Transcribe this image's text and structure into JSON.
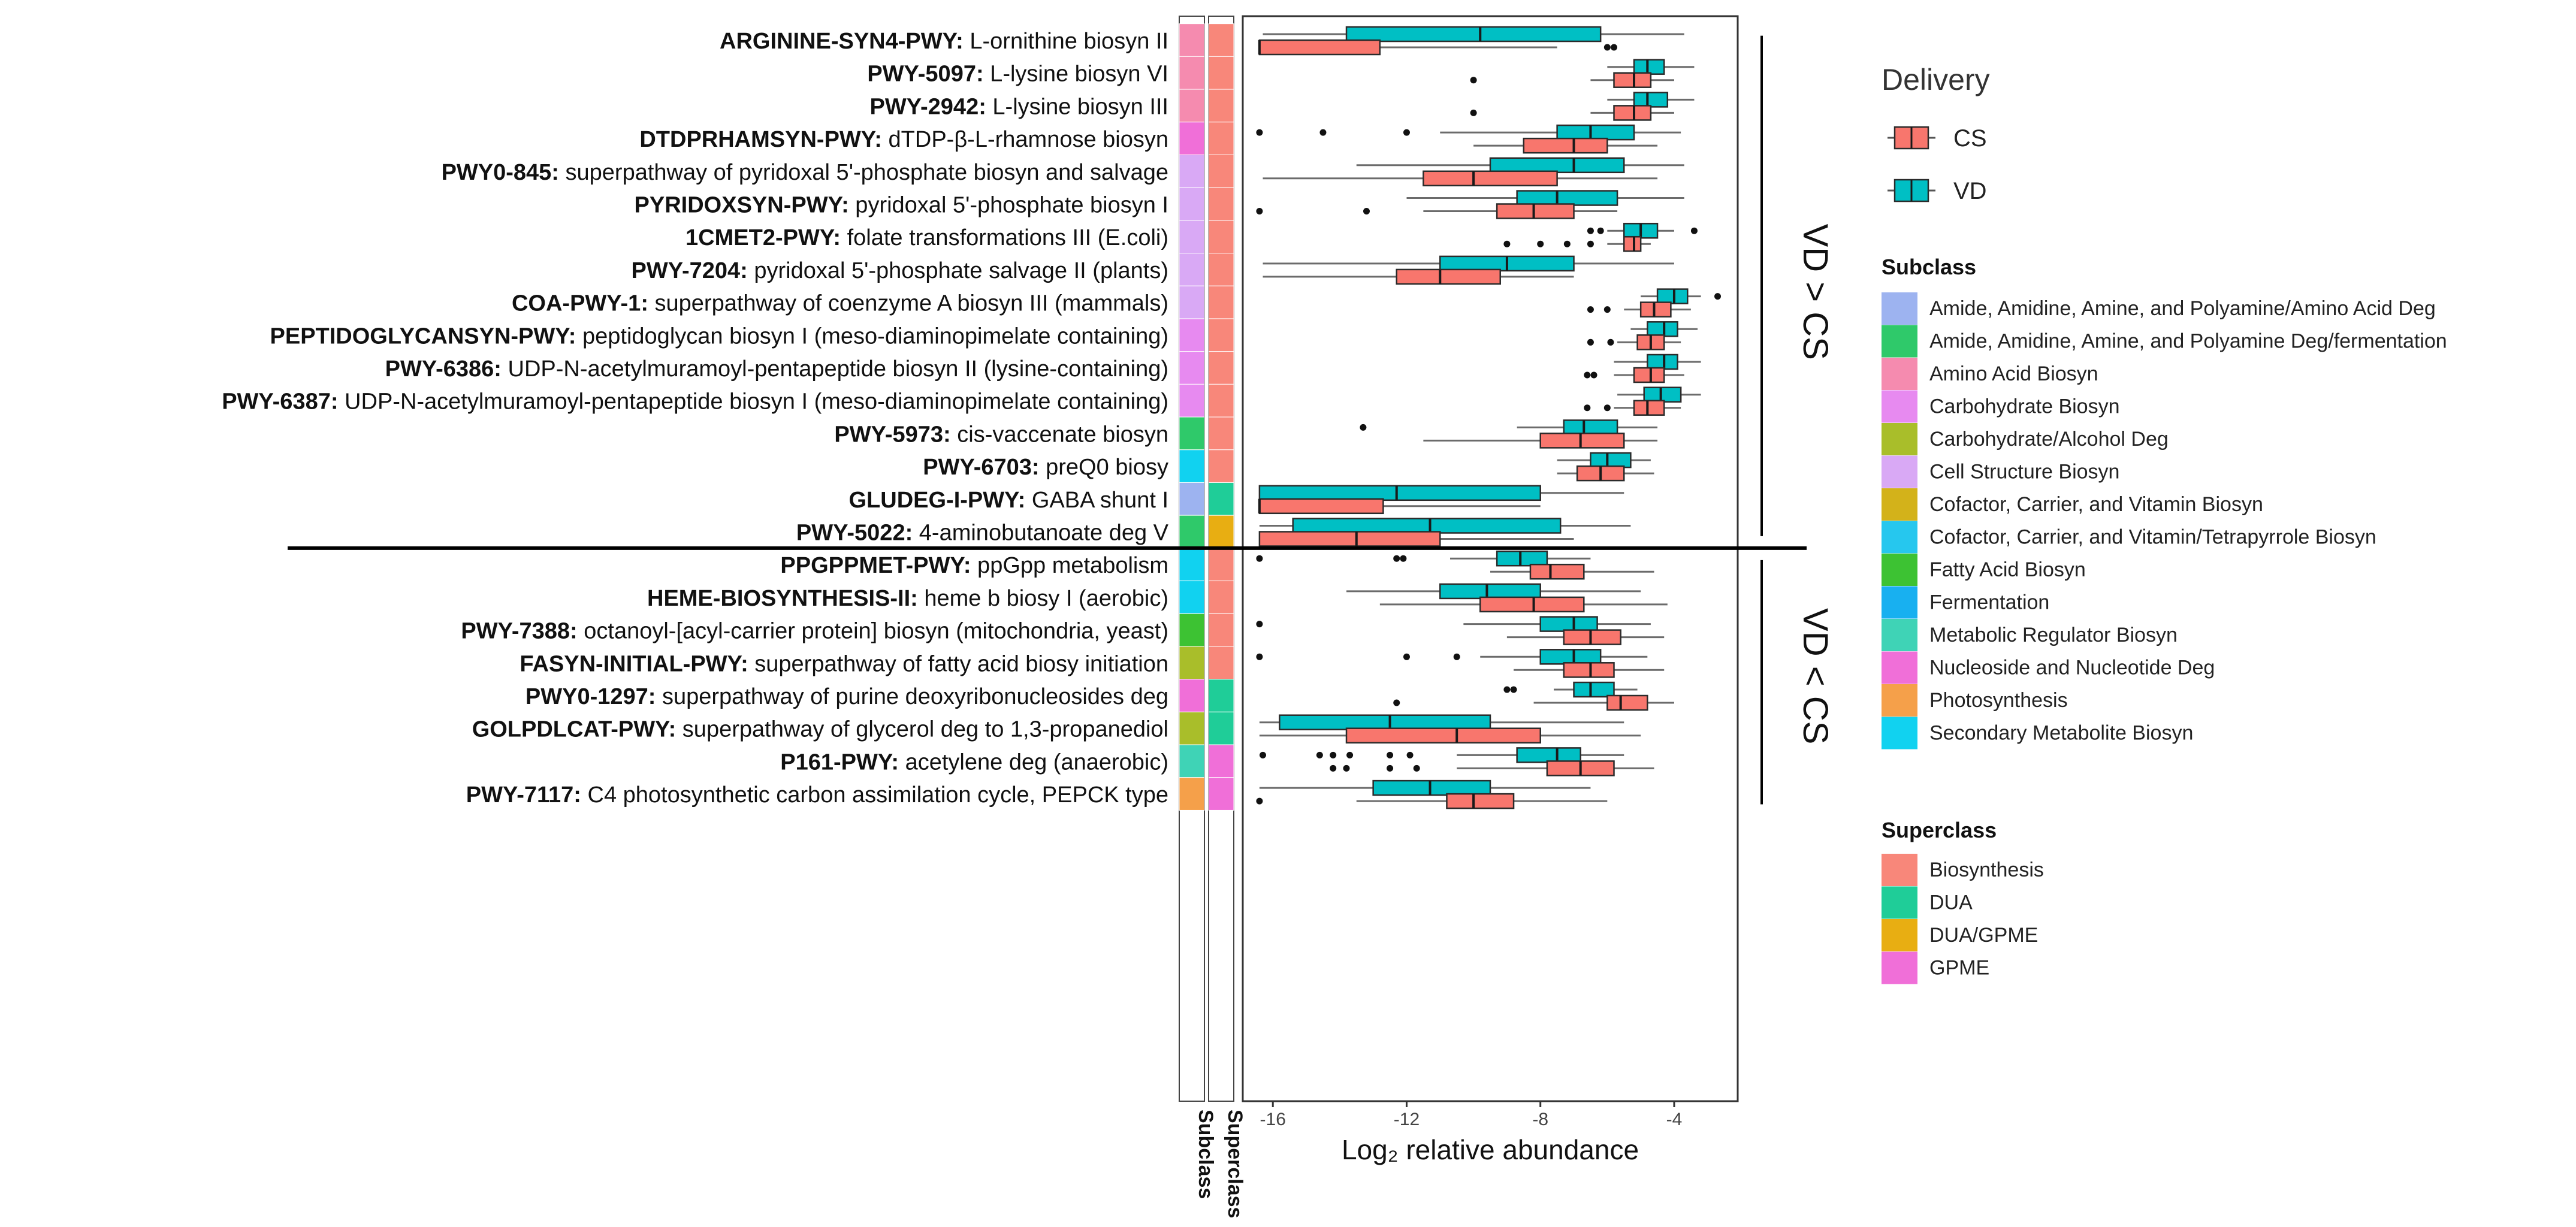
{
  "chart_data": {
    "type": "box",
    "xlabel": "Log₂ relative abundance",
    "x_ticks": [
      -16,
      -12,
      -8,
      -4
    ],
    "xlim": [
      -16.9,
      -2.1
    ],
    "group_labels": {
      "upper": "VD > CS",
      "lower": "VD < CS"
    },
    "strip_labels": {
      "subclass": "Subclass",
      "superclass": "Superclass"
    },
    "pathways": [
      {
        "id": "ARGININE-SYN4-PWY:",
        "desc": "L-ornithine biosyn II",
        "subclass": "Amino Acid Biosyn",
        "superclass": "Biosynthesis",
        "group": "upper",
        "VD": {
          "whislo": -16.3,
          "q1": -13.8,
          "med": -9.8,
          "q3": -6.2,
          "whishi": -3.7,
          "out": []
        },
        "CS": {
          "whislo": -16.4,
          "q1": -16.4,
          "med": -16.4,
          "q3": -12.8,
          "whishi": -7.5,
          "out": [
            -6.0,
            -5.8
          ]
        }
      },
      {
        "id": "PWY-5097:",
        "desc": "L-lysine biosyn VI",
        "subclass": "Amino Acid Biosyn",
        "superclass": "Biosynthesis",
        "group": "upper",
        "VD": {
          "whislo": -6.0,
          "q1": -5.2,
          "med": -4.8,
          "q3": -4.3,
          "whishi": -3.4,
          "out": []
        },
        "CS": {
          "whislo": -6.5,
          "q1": -5.8,
          "med": -5.2,
          "q3": -4.7,
          "whishi": -4.0,
          "out": [
            -10.0
          ]
        }
      },
      {
        "id": "PWY-2942:",
        "desc": "L-lysine biosyn III",
        "subclass": "Amino Acid Biosyn",
        "superclass": "Biosynthesis",
        "group": "upper",
        "VD": {
          "whislo": -6.0,
          "q1": -5.2,
          "med": -4.8,
          "q3": -4.2,
          "whishi": -3.4,
          "out": []
        },
        "CS": {
          "whislo": -6.5,
          "q1": -5.8,
          "med": -5.2,
          "q3": -4.7,
          "whishi": -4.0,
          "out": [
            -10.0
          ]
        }
      },
      {
        "id": "DTDPRHAMSYN-PWY:",
        "desc": "dTDP-β-L-rhamnose biosyn",
        "subclass": "Nucleoside and Nucleotide Deg",
        "superclass": "Biosynthesis",
        "group": "upper",
        "VD": {
          "whislo": -11.0,
          "q1": -7.5,
          "med": -6.5,
          "q3": -5.2,
          "whishi": -3.8,
          "out": [
            -16.4,
            -14.5,
            -12.0
          ]
        },
        "CS": {
          "whislo": -10.0,
          "q1": -8.5,
          "med": -7.0,
          "q3": -6.0,
          "whishi": -4.5,
          "out": []
        }
      },
      {
        "id": "PWY0-845:",
        "desc": "superpathway of pyridoxal 5'-phosphate biosyn and salvage",
        "subclass": "Cell Structure Biosyn",
        "superclass": "Biosynthesis",
        "group": "upper",
        "VD": {
          "whislo": -13.5,
          "q1": -9.5,
          "med": -7.0,
          "q3": -5.5,
          "whishi": -3.7,
          "out": []
        },
        "CS": {
          "whislo": -16.3,
          "q1": -11.5,
          "med": -10.0,
          "q3": -7.5,
          "whishi": -4.5,
          "out": []
        }
      },
      {
        "id": "PYRIDOXSYN-PWY:",
        "desc": "pyridoxal 5'-phosphate biosyn I",
        "subclass": "Cell Structure Biosyn",
        "superclass": "Biosynthesis",
        "group": "upper",
        "VD": {
          "whislo": -12.0,
          "q1": -8.7,
          "med": -7.5,
          "q3": -5.7,
          "whishi": -3.7,
          "out": []
        },
        "CS": {
          "whislo": -11.5,
          "q1": -9.3,
          "med": -8.2,
          "q3": -7.0,
          "whishi": -5.7,
          "out": [
            -16.4,
            -13.2
          ]
        }
      },
      {
        "id": "1CMET2-PWY:",
        "desc": "folate transformations III (E.coli)",
        "subclass": "Cell Structure Biosyn",
        "superclass": "Biosynthesis",
        "group": "upper",
        "VD": {
          "whislo": -6.0,
          "q1": -5.5,
          "med": -5.0,
          "q3": -4.5,
          "whishi": -4.0,
          "out": [
            -6.5,
            -6.2,
            -3.4
          ]
        },
        "CS": {
          "whislo": -6.0,
          "q1": -5.5,
          "med": -5.2,
          "q3": -5.0,
          "whishi": -4.7,
          "out": [
            -9.0,
            -8.0,
            -7.2,
            -6.5
          ]
        }
      },
      {
        "id": "PWY-7204:",
        "desc": "pyridoxal 5'-phosphate salvage II (plants)",
        "subclass": "Cell Structure Biosyn",
        "superclass": "Biosynthesis",
        "group": "upper",
        "VD": {
          "whislo": -16.3,
          "q1": -11.0,
          "med": -9.0,
          "q3": -7.0,
          "whishi": -4.0,
          "out": []
        },
        "CS": {
          "whislo": -16.3,
          "q1": -12.3,
          "med": -11.0,
          "q3": -9.2,
          "whishi": -7.0,
          "out": []
        }
      },
      {
        "id": "COA-PWY-1:",
        "desc": "superpathway of coenzyme A biosyn III (mammals)",
        "subclass": "Cell Structure Biosyn",
        "superclass": "Biosynthesis",
        "group": "upper",
        "VD": {
          "whislo": -5.0,
          "q1": -4.5,
          "med": -4.0,
          "q3": -3.6,
          "whishi": -3.2,
          "out": [
            -2.7
          ]
        },
        "CS": {
          "whislo": -5.5,
          "q1": -5.0,
          "med": -4.6,
          "q3": -4.1,
          "whishi": -3.5,
          "out": [
            -6.5,
            -6.0
          ]
        }
      },
      {
        "id": "PEPTIDOGLYCANSYN-PWY:",
        "desc": "peptidoglycan biosyn I (meso-diaminopimelate containing)",
        "subclass": "Carbohydrate Biosyn",
        "superclass": "Biosynthesis",
        "group": "upper",
        "VD": {
          "whislo": -5.3,
          "q1": -4.8,
          "med": -4.3,
          "q3": -3.9,
          "whishi": -3.3,
          "out": []
        },
        "CS": {
          "whislo": -5.7,
          "q1": -5.1,
          "med": -4.7,
          "q3": -4.3,
          "whishi": -3.8,
          "out": [
            -6.5,
            -5.9
          ]
        }
      },
      {
        "id": "PWY-6386:",
        "desc": "UDP-N-acetylmuramoyl-pentapeptide biosyn II (lysine-containing)",
        "subclass": "Carbohydrate Biosyn",
        "superclass": "Biosynthesis",
        "group": "upper",
        "VD": {
          "whislo": -5.8,
          "q1": -4.8,
          "med": -4.3,
          "q3": -3.9,
          "whishi": -3.2,
          "out": []
        },
        "CS": {
          "whislo": -5.8,
          "q1": -5.2,
          "med": -4.7,
          "q3": -4.3,
          "whishi": -3.7,
          "out": [
            -6.6,
            -6.4
          ]
        }
      },
      {
        "id": "PWY-6387:",
        "desc": "UDP-N-acetylmuramoyl-pentapeptide biosyn I (meso-diaminopimelate containing)",
        "subclass": "Carbohydrate Biosyn",
        "superclass": "Biosynthesis",
        "group": "upper",
        "VD": {
          "whislo": -5.7,
          "q1": -4.9,
          "med": -4.4,
          "q3": -3.8,
          "whishi": -3.2,
          "out": []
        },
        "CS": {
          "whislo": -5.8,
          "q1": -5.2,
          "med": -4.8,
          "q3": -4.3,
          "whishi": -3.8,
          "out": [
            -6.6,
            -6.0
          ]
        }
      },
      {
        "id": "PWY-5973:",
        "desc": "cis-vaccenate biosyn",
        "subclass": "Amide, Amidine, Amine, and Polyamine Deg/fermentation",
        "superclass": "Biosynthesis",
        "group": "upper",
        "VD": {
          "whislo": -8.7,
          "q1": -7.3,
          "med": -6.7,
          "q3": -5.7,
          "whishi": -4.5,
          "out": [
            -13.3
          ]
        },
        "CS": {
          "whislo": -11.5,
          "q1": -8.0,
          "med": -6.8,
          "q3": -5.5,
          "whishi": -4.5,
          "out": []
        }
      },
      {
        "id": "PWY-6703:",
        "desc": "preQ0 biosy",
        "subclass": "Secondary Metabolite Biosyn",
        "superclass": "Biosynthesis",
        "group": "upper",
        "VD": {
          "whislo": -7.5,
          "q1": -6.5,
          "med": -6.0,
          "q3": -5.3,
          "whishi": -4.7,
          "out": []
        },
        "CS": {
          "whislo": -7.5,
          "q1": -6.9,
          "med": -6.2,
          "q3": -5.5,
          "whishi": -4.6,
          "out": []
        }
      },
      {
        "id": "GLUDEG-I-PWY:",
        "desc": "GABA shunt I",
        "subclass": "Amide, Amidine, Amine, and Polyamine/Amino Acid Deg",
        "superclass": "DUA",
        "group": "upper",
        "VD": {
          "whislo": -16.4,
          "q1": -16.4,
          "med": -12.3,
          "q3": -8.0,
          "whishi": -5.5,
          "out": []
        },
        "CS": {
          "whislo": -16.4,
          "q1": -16.4,
          "med": -16.4,
          "q3": -12.7,
          "whishi": -8.0,
          "out": []
        }
      },
      {
        "id": "PWY-5022:",
        "desc": "4-aminobutanoate deg V",
        "subclass": "Amide, Amidine, Amine, and Polyamine Deg/fermentation",
        "superclass": "DUA/GPME",
        "group": "upper",
        "VD": {
          "whislo": -16.4,
          "q1": -15.4,
          "med": -11.3,
          "q3": -7.4,
          "whishi": -5.3,
          "out": []
        },
        "CS": {
          "whislo": -16.4,
          "q1": -16.4,
          "med": -13.5,
          "q3": -11.0,
          "whishi": -7.0,
          "out": []
        }
      },
      {
        "id": "PPGPPMET-PWY:",
        "desc": "ppGpp metabolism",
        "subclass": "Secondary Metabolite Biosyn",
        "superclass": "Biosynthesis",
        "group": "lower",
        "VD": {
          "whislo": -10.7,
          "q1": -9.3,
          "med": -8.6,
          "q3": -7.8,
          "whishi": -6.5,
          "out": [
            -16.4,
            -12.3,
            -12.1
          ]
        },
        "CS": {
          "whislo": -9.5,
          "q1": -8.3,
          "med": -7.7,
          "q3": -6.7,
          "whishi": -4.6,
          "out": []
        }
      },
      {
        "id": "HEME-BIOSYNTHESIS-II:",
        "desc": "heme b biosy I (aerobic)",
        "subclass": "Secondary Metabolite Biosyn",
        "superclass": "Biosynthesis",
        "group": "lower",
        "VD": {
          "whislo": -13.8,
          "q1": -11.0,
          "med": -9.6,
          "q3": -8.0,
          "whishi": -5.0,
          "out": []
        },
        "CS": {
          "whislo": -12.8,
          "q1": -9.8,
          "med": -8.2,
          "q3": -6.7,
          "whishi": -4.2,
          "out": []
        }
      },
      {
        "id": "PWY-7388:",
        "desc": "octanoyl-[acyl-carrier protein] biosyn (mitochondria, yeast)",
        "subclass": "Fatty Acid Biosyn",
        "superclass": "Biosynthesis",
        "group": "lower",
        "VD": {
          "whislo": -10.3,
          "q1": -8.0,
          "med": -7.0,
          "q3": -6.3,
          "whishi": -4.7,
          "out": [
            -16.4
          ]
        },
        "CS": {
          "whislo": -9.0,
          "q1": -7.3,
          "med": -6.5,
          "q3": -5.6,
          "whishi": -4.3,
          "out": []
        }
      },
      {
        "id": "FASYN-INITIAL-PWY:",
        "desc": "superpathway of fatty acid biosy initiation",
        "subclass": "Carbohydrate/Alcohol Deg",
        "superclass": "Biosynthesis",
        "group": "lower",
        "VD": {
          "whislo": -9.8,
          "q1": -8.0,
          "med": -7.0,
          "q3": -6.2,
          "whishi": -4.8,
          "out": [
            -16.4,
            -12.0,
            -10.5
          ]
        },
        "CS": {
          "whislo": -8.8,
          "q1": -7.3,
          "med": -6.5,
          "q3": -5.8,
          "whishi": -4.3,
          "out": []
        }
      },
      {
        "id": "PWY0-1297:",
        "desc": "superpathway of purine deoxyribonucleosides deg",
        "subclass": "Nucleoside and Nucleotide Deg",
        "superclass": "DUA",
        "group": "lower",
        "VD": {
          "whislo": -7.6,
          "q1": -7.0,
          "med": -6.5,
          "q3": -5.8,
          "whishi": -5.1,
          "out": [
            -9.0,
            -8.8
          ]
        },
        "CS": {
          "whislo": -8.2,
          "q1": -6.0,
          "med": -5.6,
          "q3": -4.8,
          "whishi": -4.0,
          "out": [
            -12.3
          ]
        }
      },
      {
        "id": "GOLPDLCAT-PWY:",
        "desc": "superpathway of glycerol deg to 1,3-propanediol",
        "subclass": "Carbohydrate/Alcohol Deg",
        "superclass": "DUA",
        "group": "lower",
        "VD": {
          "whislo": -16.4,
          "q1": -15.8,
          "med": -12.5,
          "q3": -9.5,
          "whishi": -5.5,
          "out": []
        },
        "CS": {
          "whislo": -16.4,
          "q1": -13.8,
          "med": -10.5,
          "q3": -8.0,
          "whishi": -5.0,
          "out": []
        }
      },
      {
        "id": "P161-PWY:",
        "desc": "acetylene deg (anaerobic)",
        "subclass": "Metabolic Regulator Biosyn",
        "superclass": "GPME",
        "group": "lower",
        "VD": {
          "whislo": -10.5,
          "q1": -8.7,
          "med": -7.5,
          "q3": -6.8,
          "whishi": -5.5,
          "out": [
            -16.3,
            -14.6,
            -14.2,
            -13.7,
            -12.5,
            -11.9
          ]
        },
        "CS": {
          "whislo": -10.5,
          "q1": -7.8,
          "med": -6.8,
          "q3": -5.8,
          "whishi": -4.6,
          "out": [
            -14.2,
            -13.8,
            -12.5,
            -11.7
          ]
        }
      },
      {
        "id": "PWY-7117:",
        "desc": "C4 photosynthetic carbon assimilation cycle, PEPCK type",
        "subclass": "Photosynthesis",
        "superclass": "GPME",
        "group": "lower",
        "VD": {
          "whislo": -16.4,
          "q1": -13.0,
          "med": -11.3,
          "q3": -9.5,
          "whishi": -6.5,
          "out": []
        },
        "CS": {
          "whislo": -13.5,
          "q1": -10.8,
          "med": -10.0,
          "q3": -8.8,
          "whishi": -6.0,
          "out": [
            -16.4
          ]
        }
      }
    ],
    "legends": {
      "delivery": {
        "title": "Delivery",
        "items": [
          {
            "label": "CS",
            "color": "#F8766D"
          },
          {
            "label": "VD",
            "color": "#00BFC4"
          }
        ]
      },
      "subclass": {
        "title": "Subclass",
        "items": [
          {
            "label": "Amide, Amidine, Amine, and Polyamine/Amino Acid Deg",
            "color": "#9DB3F0"
          },
          {
            "label": "Amide, Amidine, Amine, and Polyamine Deg/fermentation",
            "color": "#2FC96A"
          },
          {
            "label": "Amino Acid Biosyn",
            "color": "#F58BAF"
          },
          {
            "label": "Carbohydrate Biosyn",
            "color": "#E78AF0"
          },
          {
            "label": "Carbohydrate/Alcohol Deg",
            "color": "#A9BE2A"
          },
          {
            "label": "Cell Structure Biosyn",
            "color": "#D9A9F5"
          },
          {
            "label": "Cofactor, Carrier, and Vitamin Biosyn",
            "color": "#D3B21A"
          },
          {
            "label": "Cofactor, Carrier, and Vitamin/Tetrapyrrole Biosyn",
            "color": "#26C7EE"
          },
          {
            "label": "Fatty Acid Biosyn",
            "color": "#3DC233"
          },
          {
            "label": "Fermentation",
            "color": "#18B0F0"
          },
          {
            "label": "Metabolic Regulator Biosyn",
            "color": "#3FD3B6"
          },
          {
            "label": "Nucleoside and Nucleotide Deg",
            "color": "#F06FD8"
          },
          {
            "label": "Photosynthesis",
            "color": "#F5A04A"
          },
          {
            "label": "Secondary Metabolite Biosyn",
            "color": "#11D2F0"
          }
        ]
      },
      "superclass": {
        "title": "Superclass",
        "items": [
          {
            "label": "Biosynthesis",
            "color": "#F8877A"
          },
          {
            "label": "DUA",
            "color": "#1FCD98"
          },
          {
            "label": "DUA/GPME",
            "color": "#E8AE12"
          },
          {
            "label": "GPME",
            "color": "#F06FD8"
          }
        ]
      }
    }
  }
}
